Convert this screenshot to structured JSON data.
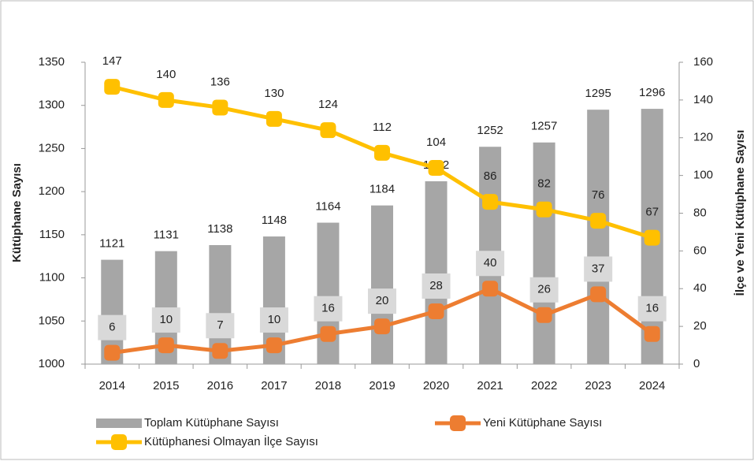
{
  "chart_data": {
    "type": "bar",
    "categories": [
      "2014",
      "2015",
      "2016",
      "2017",
      "2018",
      "2019",
      "2020",
      "2021",
      "2022",
      "2023",
      "2024"
    ],
    "ylim": [
      1000,
      1350
    ],
    "yticks": [
      1000,
      1050,
      1100,
      1150,
      1200,
      1250,
      1300,
      1350
    ],
    "y2lim": [
      0,
      160
    ],
    "y2ticks": [
      0,
      20,
      40,
      60,
      80,
      100,
      120,
      140,
      160
    ],
    "ylabel": "Kütüphane Sayısı",
    "y2label": "İlçe ve Yeni Kütüphane  Sayısı",
    "series": [
      {
        "name": "Toplam Kütüphane Sayısı",
        "type": "bar",
        "color": "#a6a6a6",
        "values": [
          1121,
          1131,
          1138,
          1148,
          1164,
          1184,
          1212,
          1252,
          1257,
          1295,
          1296
        ]
      },
      {
        "name": "Yeni Kütüphane Sayısı",
        "type": "line",
        "axis": "y2",
        "color": "#ed7d31",
        "values": [
          6,
          10,
          7,
          10,
          16,
          20,
          28,
          40,
          26,
          37,
          16
        ]
      },
      {
        "name": "Kütüphanesi Olmayan İlçe Sayısı",
        "type": "line",
        "axis": "y2",
        "color": "#ffc000",
        "values": [
          147,
          140,
          136,
          130,
          124,
          112,
          104,
          86,
          82,
          76,
          67
        ]
      }
    ]
  }
}
